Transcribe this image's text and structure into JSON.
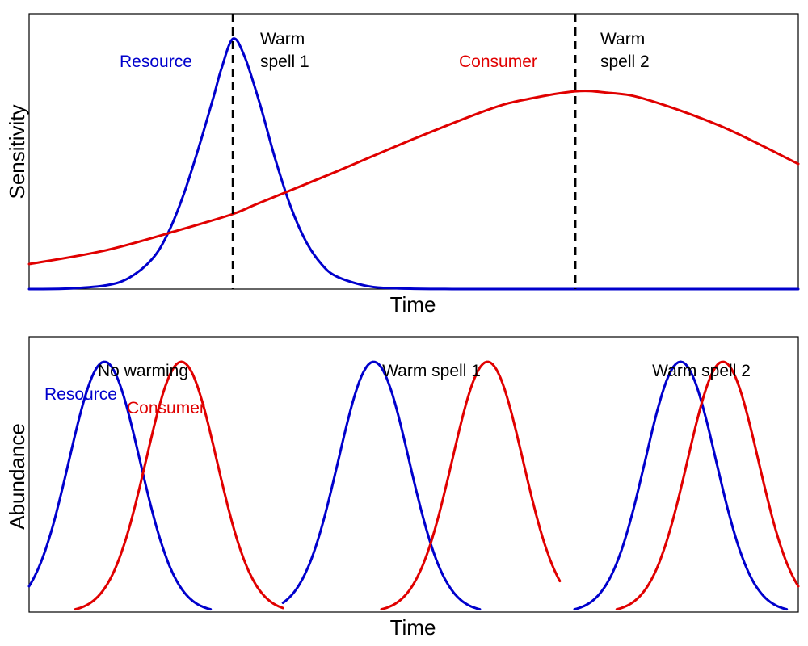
{
  "colors": {
    "resource": "#0000cc",
    "consumer": "#e00000",
    "text": "#000000",
    "marker": "#000000"
  },
  "chart_data": [
    {
      "type": "line",
      "xlabel": "Time",
      "ylabel": "Sensitivity",
      "xlim": [
        0,
        100
      ],
      "ylim": [
        0,
        1.1
      ],
      "grid": false,
      "series": [
        {
          "name": "Resource",
          "x": [
            0,
            5,
            10,
            13,
            16,
            18,
            20,
            22,
            24,
            25,
            26.5,
            28,
            30,
            32,
            34,
            36,
            38,
            40,
            44,
            48,
            55,
            65,
            80,
            100
          ],
          "y": [
            0.0,
            0.002,
            0.015,
            0.045,
            0.12,
            0.22,
            0.37,
            0.56,
            0.77,
            0.88,
            1.0,
            0.93,
            0.74,
            0.52,
            0.33,
            0.19,
            0.1,
            0.05,
            0.012,
            0.003,
            0.0,
            0.0,
            0.0,
            0.0
          ]
        },
        {
          "name": "Consumer",
          "x": [
            0,
            10,
            20,
            26.5,
            30,
            40,
            50,
            60,
            65,
            71,
            75,
            80,
            90,
            100
          ],
          "y": [
            0.1,
            0.155,
            0.24,
            0.3,
            0.345,
            0.47,
            0.6,
            0.72,
            0.76,
            0.79,
            0.785,
            0.76,
            0.65,
            0.5
          ]
        }
      ],
      "annotations": [
        {
          "id": "spell1",
          "text_lines": [
            "Warm",
            "spell 1"
          ],
          "x": 26.5
        },
        {
          "id": "spell2",
          "text_lines": [
            "Warm",
            "spell 2"
          ],
          "x": 71
        }
      ]
    },
    {
      "type": "line",
      "xlabel": "Time",
      "ylabel": "Abundance",
      "xlim": [
        0,
        100
      ],
      "ylim": [
        0,
        1.1
      ],
      "grid": false,
      "panels": [
        {
          "label": "No warming",
          "resource_peak": 9.8,
          "consumer_peak": 19.8,
          "start": 0,
          "end": 33
        },
        {
          "label": "Warm spell 1",
          "resource_peak": 44.8,
          "consumer_peak": 59.6,
          "start": 33,
          "end": 69
        },
        {
          "label": "Warm spell 2",
          "resource_peak": 84.7,
          "consumer_peak": 90.2,
          "start": 69,
          "end": 100
        }
      ],
      "series": [
        {
          "name": "Resource",
          "peak_value": 1.0
        },
        {
          "name": "Consumer",
          "peak_value": 1.0
        }
      ]
    }
  ]
}
